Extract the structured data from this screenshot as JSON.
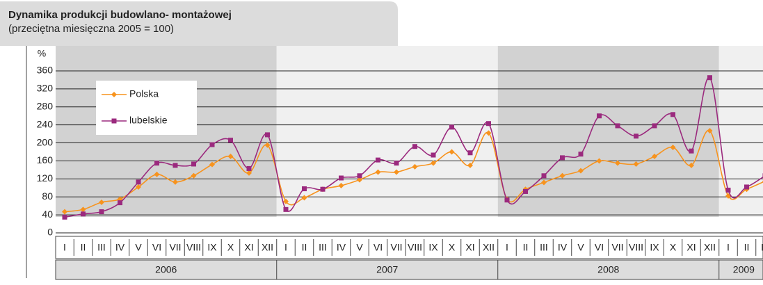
{
  "chart_data": {
    "type": "line",
    "title": "Dynamika produkcji budowlano- montażowej",
    "subtitle": "(przeciętna miesięczna 2005 = 100)",
    "y_axis_label": "%",
    "categories": [
      "I",
      "II",
      "III",
      "IV",
      "V",
      "VI",
      "VII",
      "VIII",
      "IX",
      "X",
      "XI",
      "XII",
      "I",
      "II",
      "III",
      "IV",
      "V",
      "VI",
      "VII",
      "VIII",
      "IX",
      "X",
      "XI",
      "XII",
      "I",
      "II",
      "III",
      "IV",
      "V",
      "VI",
      "VII",
      "VIII",
      "IX",
      "X",
      "XI",
      "XII",
      "I",
      "II",
      "III"
    ],
    "years": [
      "2006",
      "2007",
      "2008",
      "2009"
    ],
    "series": [
      {
        "name": "Polska",
        "color": "#f7931e",
        "values": [
          47,
          52,
          68,
          75,
          102,
          130,
          113,
          127,
          152,
          170,
          133,
          195,
          70,
          78,
          97,
          105,
          118,
          135,
          135,
          147,
          155,
          180,
          150,
          222,
          75,
          97,
          112,
          127,
          138,
          160,
          155,
          153,
          170,
          190,
          150,
          227,
          82,
          97,
          115
        ]
      },
      {
        "name": "lubelskie",
        "color": "#9b2a7e",
        "values": [
          35,
          42,
          47,
          67,
          113,
          155,
          150,
          153,
          196,
          206,
          143,
          218,
          52,
          98,
          97,
          122,
          127,
          162,
          155,
          192,
          173,
          235,
          178,
          243,
          73,
          92,
          127,
          167,
          175,
          260,
          238,
          215,
          238,
          263,
          182,
          345,
          95,
          102,
          127
        ]
      }
    ],
    "ylim": [
      0,
      360
    ],
    "yticks": [
      0,
      40,
      80,
      120,
      160,
      200,
      240,
      280,
      320,
      360
    ],
    "grid": true
  }
}
